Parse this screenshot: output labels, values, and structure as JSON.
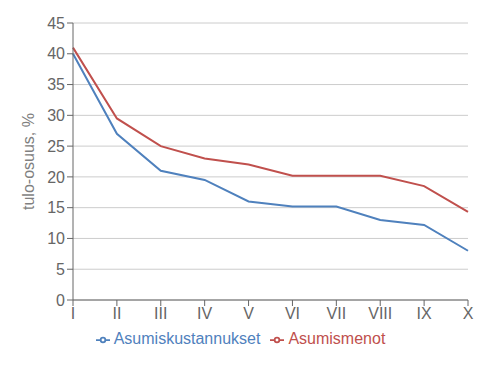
{
  "chart_data": {
    "type": "line",
    "categories": [
      "I",
      "II",
      "III",
      "IV",
      "V",
      "VI",
      "VII",
      "VIII",
      "IX",
      "X"
    ],
    "series": [
      {
        "name": "Asumismenot",
        "color": "#c0504d",
        "values": [
          41,
          29.5,
          25,
          23,
          22,
          20.2,
          20.2,
          20.2,
          18.5,
          14.3
        ]
      },
      {
        "name": "Asumiskustannukset",
        "color": "#4f81bd",
        "values": [
          40,
          27,
          21,
          19.5,
          16,
          15.2,
          15.2,
          13,
          12.2,
          8
        ]
      }
    ],
    "ylabel": "tulo-osuus, %",
    "ylim": [
      0,
      45
    ],
    "yticks": [
      0,
      5,
      10,
      15,
      20,
      25,
      30,
      35,
      40,
      45
    ],
    "grid": true,
    "legend": "bottom"
  }
}
